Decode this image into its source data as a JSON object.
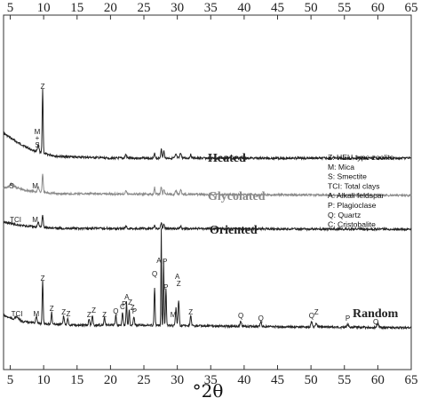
{
  "chart_data": {
    "type": "line",
    "title": "",
    "xlabel": "°2θ",
    "ylabel": "",
    "xlim": [
      4,
      65
    ],
    "x_ticks": [
      5,
      10,
      15,
      20,
      25,
      30,
      35,
      40,
      45,
      50,
      55,
      60,
      65
    ],
    "grid": false,
    "colors": {
      "dark": "#222222",
      "glycolated": "#8a8a8a"
    },
    "series": [
      {
        "name": "Heated",
        "color_key": "dark",
        "baseline": 175,
        "profile": [
          [
            4,
            150
          ],
          [
            6,
            160
          ],
          [
            8,
            168
          ],
          [
            9.5,
            172
          ],
          [
            12,
            176
          ],
          [
            20,
            178
          ],
          [
            30,
            178
          ],
          [
            65,
            178
          ]
        ],
        "peaks": [
          {
            "x": 9.85,
            "h": 73,
            "w": 0.1
          },
          {
            "x": 9.2,
            "h": 8,
            "w": 0.15
          },
          {
            "x": 27.6,
            "h": 10,
            "w": 0.12
          },
          {
            "x": 28.0,
            "h": 8,
            "w": 0.12
          },
          {
            "x": 26.6,
            "h": 5,
            "w": 0.12
          },
          {
            "x": 22.3,
            "h": 4,
            "w": 0.15
          },
          {
            "x": 29.8,
            "h": 4,
            "w": 0.15
          },
          {
            "x": 30.5,
            "h": 6,
            "w": 0.15
          },
          {
            "x": 32.0,
            "h": 4,
            "w": 0.15
          }
        ],
        "annotations": [
          {
            "label": "Z",
            "x": 9.85,
            "lines": 1,
            "dx": 0
          },
          {
            "label": "M",
            "x": 9.85,
            "lines": 1,
            "dx": -6
          },
          {
            "label": "+",
            "x": 9.85,
            "lines": 1,
            "dx": -6
          },
          {
            "label": "S",
            "x": 9.85,
            "lines": 1,
            "dx": -6
          }
        ]
      },
      {
        "name": "Glycolated",
        "color_key": "glycolated",
        "baseline": 218,
        "profile": [
          [
            4,
            212
          ],
          [
            5.5,
            210
          ],
          [
            7,
            214
          ],
          [
            9,
            216
          ],
          [
            12,
            218
          ],
          [
            65,
            220
          ]
        ],
        "peaks": [
          {
            "x": 5.2,
            "h": 3,
            "w": 0.4
          },
          {
            "x": 9.85,
            "h": 20,
            "w": 0.12
          },
          {
            "x": 9.2,
            "h": 6,
            "w": 0.15
          },
          {
            "x": 26.6,
            "h": 8,
            "w": 0.12
          },
          {
            "x": 27.6,
            "h": 9,
            "w": 0.12
          },
          {
            "x": 28.0,
            "h": 6,
            "w": 0.12
          },
          {
            "x": 22.3,
            "h": 4,
            "w": 0.15
          },
          {
            "x": 29.8,
            "h": 4,
            "w": 0.15
          },
          {
            "x": 30.5,
            "h": 5,
            "w": 0.15
          }
        ],
        "annotations": [
          {
            "label": "S",
            "x": 5.2
          },
          {
            "label": "M",
            "x": 8.9
          },
          {
            "label": "Z",
            "x": 9.9
          }
        ]
      },
      {
        "name": "Oriented",
        "color_key": "dark",
        "baseline": 257,
        "profile": [
          [
            4,
            250
          ],
          [
            6,
            253
          ],
          [
            8,
            255
          ],
          [
            12,
            257
          ],
          [
            65,
            258
          ]
        ],
        "peaks": [
          {
            "x": 9.85,
            "h": 14,
            "w": 0.12
          },
          {
            "x": 9.2,
            "h": 6,
            "w": 0.15
          },
          {
            "x": 27.6,
            "h": 7,
            "w": 0.12
          },
          {
            "x": 28.0,
            "h": 5,
            "w": 0.12
          },
          {
            "x": 26.6,
            "h": 4,
            "w": 0.12
          },
          {
            "x": 22.3,
            "h": 3,
            "w": 0.15
          },
          {
            "x": 30.5,
            "h": 3,
            "w": 0.15
          }
        ],
        "annotations": [
          {
            "label": "TCI",
            "x": 5.8
          },
          {
            "label": "M",
            "x": 8.9
          }
        ]
      },
      {
        "name": "Random",
        "color_key": "dark",
        "baseline": 368,
        "profile": [
          [
            4,
            355
          ],
          [
            6,
            361
          ],
          [
            9,
            364
          ],
          [
            15,
            366
          ],
          [
            25,
            366
          ],
          [
            35,
            367
          ],
          [
            65,
            369
          ]
        ],
        "peaks": [
          {
            "x": 6.0,
            "h": 4,
            "w": 0.4
          },
          {
            "x": 8.9,
            "h": 8,
            "w": 0.15
          },
          {
            "x": 9.85,
            "h": 50,
            "w": 0.1
          },
          {
            "x": 11.2,
            "h": 14,
            "w": 0.1
          },
          {
            "x": 13.0,
            "h": 10,
            "w": 0.12
          },
          {
            "x": 13.6,
            "h": 8,
            "w": 0.12
          },
          {
            "x": 16.8,
            "h": 7,
            "w": 0.12
          },
          {
            "x": 17.3,
            "h": 11,
            "w": 0.12
          },
          {
            "x": 19.1,
            "h": 9,
            "w": 0.12
          },
          {
            "x": 20.8,
            "h": 11,
            "w": 0.12
          },
          {
            "x": 21.8,
            "h": 14,
            "w": 0.12
          },
          {
            "x": 22.4,
            "h": 26,
            "w": 0.1
          },
          {
            "x": 22.8,
            "h": 18,
            "w": 0.1
          },
          {
            "x": 23.5,
            "h": 10,
            "w": 0.12
          },
          {
            "x": 26.6,
            "h": 43,
            "w": 0.1
          },
          {
            "x": 27.6,
            "h": 109,
            "w": 0.07
          },
          {
            "x": 27.95,
            "h": 74,
            "w": 0.08
          },
          {
            "x": 28.3,
            "h": 42,
            "w": 0.1
          },
          {
            "x": 29.8,
            "h": 20,
            "w": 0.12
          },
          {
            "x": 30.2,
            "h": 28,
            "w": 0.12
          },
          {
            "x": 32.0,
            "h": 12,
            "w": 0.12
          },
          {
            "x": 39.5,
            "h": 6,
            "w": 0.15
          },
          {
            "x": 42.5,
            "h": 5,
            "w": 0.15
          },
          {
            "x": 50.1,
            "h": 6,
            "w": 0.15
          },
          {
            "x": 50.8,
            "h": 4,
            "w": 0.15
          },
          {
            "x": 55.5,
            "h": 3,
            "w": 0.2
          },
          {
            "x": 60.0,
            "h": 4,
            "w": 0.2
          }
        ],
        "annotations": [
          {
            "label": "TCI",
            "x": 6.0
          },
          {
            "label": "M",
            "x": 8.9
          },
          {
            "label": "Z",
            "x": 9.85
          },
          {
            "label": "Z",
            "x": 11.2
          },
          {
            "label": "Z",
            "x": 13.0
          },
          {
            "label": "Z",
            "x": 13.7
          },
          {
            "label": "Z",
            "x": 16.8
          },
          {
            "label": "Z",
            "x": 17.5
          },
          {
            "label": "Z",
            "x": 19.1
          },
          {
            "label": "Q",
            "x": 20.8
          },
          {
            "label": "C",
            "x": 21.8
          },
          {
            "label": "P",
            "x": 22.0
          },
          {
            "label": "A",
            "x": 22.4
          },
          {
            "label": "Z",
            "x": 22.7
          },
          {
            "label": "Z",
            "x": 22.9
          },
          {
            "label": "P",
            "x": 23.5
          },
          {
            "label": "Q",
            "x": 26.6
          },
          {
            "label": "A",
            "x": 27.5
          },
          {
            "label": "P",
            "x": 28.1
          },
          {
            "label": "P",
            "x": 28.3
          },
          {
            "label": "M",
            "x": 29.4
          },
          {
            "label": "A",
            "x": 30.0
          },
          {
            "label": "Z",
            "x": 30.2
          },
          {
            "label": "Z",
            "x": 32.0
          },
          {
            "label": "Q",
            "x": 39.5
          },
          {
            "label": "Q",
            "x": 42.5
          },
          {
            "label": "Q",
            "x": 50.1
          },
          {
            "label": "Z",
            "x": 50.8
          },
          {
            "label": "P",
            "x": 55.5
          },
          {
            "label": "Q",
            "x": 59.7
          }
        ]
      }
    ],
    "legend": {
      "position": "right",
      "entries": [
        "Z: HEU-type zeolite",
        "M: Mica",
        "S: Smectite",
        "TCI: Total clays",
        "A: Alkali feldspar",
        "P: Plagioclase",
        "Q: Quartz",
        "C: Cristobalite"
      ]
    }
  }
}
